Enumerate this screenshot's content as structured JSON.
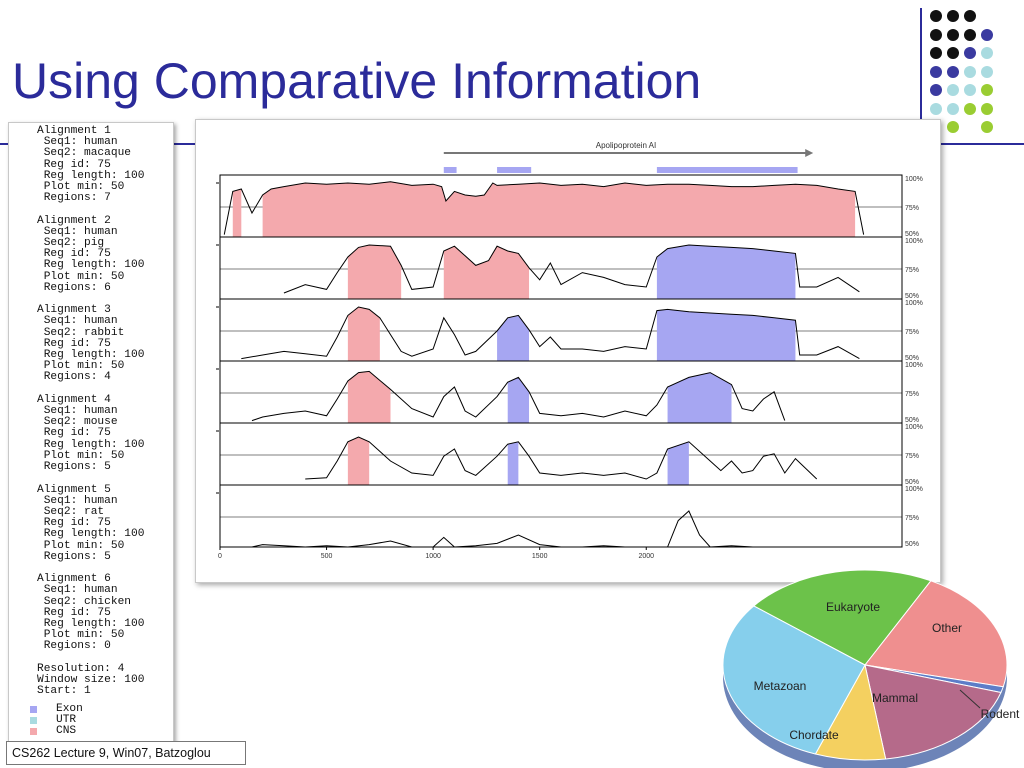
{
  "slide": {
    "title": "Using Comparative Information",
    "footer": "CS262 Lecture 9, Win07, Batzoglou"
  },
  "alignment_text": "Alignment 1\n Seq1: human\n Seq2: macaque\n Reg id: 75\n Reg length: 100\n Plot min: 50\n Regions: 7\n\nAlignment 2\n Seq1: human\n Seq2: pig\n Reg id: 75\n Reg length: 100\n Plot min: 50\n Regions: 6\n\nAlignment 3\n Seq1: human\n Seq2: rabbit\n Reg id: 75\n Reg length: 100\n Plot min: 50\n Regions: 4\n\nAlignment 4\n Seq1: human\n Seq2: mouse\n Reg id: 75\n Reg length: 100\n Plot min: 50\n Regions: 5\n\nAlignment 5\n Seq1: human\n Seq2: rat\n Reg id: 75\n Reg length: 100\n Plot min: 50\n Regions: 5\n\nAlignment 6\n Seq1: human\n Seq2: chicken\n Reg id: 75\n Reg length: 100\n Plot min: 50\n Regions: 0\n\nResolution: 4\nWindow size: 100\nStart: 1",
  "legend": [
    {
      "label": "Exon",
      "color": "#a6a6f2"
    },
    {
      "label": "UTR",
      "color": "#a9dbe0"
    },
    {
      "label": "CNS",
      "color": "#f4a9ad"
    }
  ],
  "gene_label": "Apolipoprotein AI",
  "pct_labels": [
    "100%",
    "75%",
    "50%"
  ],
  "chart_data": [
    {
      "type": "area",
      "title": "Apolipoprotein AI",
      "x_ticks": [
        0,
        500,
        1000,
        1500,
        2000
      ],
      "x_range": [
        0,
        3200
      ],
      "y_range": [
        50,
        100
      ],
      "y_ticks": [
        "100%",
        "75%",
        "50%"
      ],
      "grid": true,
      "exons": [
        [
          1050,
          1110
        ],
        [
          1300,
          1460
        ],
        [
          2050,
          2710
        ]
      ],
      "series": [
        {
          "name": "macaque",
          "x": [
            20,
            60,
            100,
            150,
            200,
            240,
            300,
            400,
            500,
            600,
            700,
            800,
            900,
            1000,
            1040,
            1060,
            1100,
            1150,
            1200,
            1240,
            1280,
            1300,
            1400,
            1500,
            1600,
            1700,
            1800,
            1900,
            2000,
            2100,
            2200,
            2300,
            2400,
            2500,
            2600,
            2700,
            2800,
            2900,
            2980,
            3000,
            3020
          ],
          "y": [
            52,
            88,
            90,
            70,
            85,
            90,
            92,
            95,
            94,
            95,
            94,
            96,
            93,
            94,
            92,
            80,
            88,
            85,
            84,
            85,
            95,
            93,
            94,
            95,
            93,
            94,
            92,
            95,
            93,
            94,
            94,
            93,
            92,
            92,
            93,
            94,
            93,
            90,
            88,
            70,
            52
          ]
        },
        {
          "name": "pig",
          "x": [
            300,
            400,
            500,
            550,
            600,
            650,
            700,
            800,
            850,
            900,
            1000,
            1050,
            1100,
            1150,
            1200,
            1260,
            1300,
            1350,
            1400,
            1450,
            1500,
            1550,
            1600,
            1700,
            1800,
            1900,
            2000,
            2050,
            2100,
            2200,
            2300,
            2400,
            2500,
            2600,
            2700,
            2720,
            2800,
            2900,
            3000
          ],
          "y": [
            55,
            62,
            58,
            72,
            85,
            93,
            95,
            94,
            78,
            58,
            60,
            90,
            94,
            86,
            78,
            82,
            94,
            90,
            88,
            76,
            66,
            80,
            62,
            72,
            68,
            62,
            60,
            85,
            92,
            95,
            94,
            93,
            92,
            90,
            88,
            60,
            60,
            68,
            56
          ]
        },
        {
          "name": "rabbit",
          "x": [
            100,
            200,
            300,
            400,
            500,
            550,
            600,
            650,
            700,
            750,
            800,
            850,
            900,
            1000,
            1050,
            1100,
            1150,
            1200,
            1300,
            1350,
            1400,
            1450,
            1500,
            1550,
            1600,
            1700,
            1800,
            1900,
            2000,
            2050,
            2100,
            2200,
            2300,
            2400,
            2500,
            2600,
            2700,
            2720,
            2800,
            2900,
            3000
          ],
          "y": [
            52,
            55,
            58,
            56,
            54,
            70,
            88,
            95,
            93,
            86,
            72,
            58,
            54,
            60,
            86,
            72,
            55,
            58,
            75,
            86,
            88,
            76,
            62,
            70,
            60,
            60,
            58,
            62,
            60,
            92,
            93,
            91,
            90,
            89,
            88,
            86,
            84,
            55,
            55,
            62,
            52
          ]
        },
        {
          "name": "mouse",
          "x": [
            150,
            200,
            300,
            400,
            500,
            550,
            600,
            650,
            700,
            800,
            900,
            1000,
            1050,
            1100,
            1150,
            1200,
            1300,
            1350,
            1400,
            1450,
            1500,
            1600,
            1700,
            1800,
            1900,
            2000,
            2050,
            2100,
            2200,
            2300,
            2400,
            2450,
            2500,
            2550,
            2600,
            2650
          ],
          "y": [
            52,
            55,
            58,
            60,
            56,
            70,
            85,
            92,
            93,
            78,
            62,
            55,
            72,
            80,
            60,
            55,
            72,
            84,
            88,
            76,
            58,
            56,
            58,
            55,
            60,
            56,
            65,
            80,
            88,
            92,
            82,
            62,
            60,
            70,
            76,
            52
          ]
        },
        {
          "name": "rat",
          "x": [
            400,
            500,
            550,
            600,
            650,
            700,
            800,
            900,
            1000,
            1050,
            1100,
            1150,
            1200,
            1300,
            1350,
            1400,
            1450,
            1500,
            1600,
            1700,
            1800,
            1900,
            2000,
            2050,
            2100,
            2200,
            2300,
            2350,
            2400,
            2450,
            2500,
            2550,
            2600,
            2650,
            2700,
            2800
          ],
          "y": [
            55,
            56,
            70,
            86,
            90,
            86,
            70,
            60,
            58,
            74,
            80,
            62,
            58,
            74,
            84,
            86,
            74,
            60,
            58,
            60,
            58,
            60,
            55,
            60,
            80,
            86,
            70,
            62,
            70,
            60,
            62,
            74,
            76,
            60,
            72,
            55
          ]
        },
        {
          "name": "chicken",
          "x": [
            150,
            200,
            300,
            400,
            500,
            600,
            700,
            800,
            900,
            1000,
            1050,
            1100,
            1200,
            1300,
            1400,
            1500,
            1600,
            1700,
            1800,
            1900,
            2000,
            2100,
            2150,
            2200,
            2250,
            2300,
            2400,
            2500,
            2600
          ],
          "y": [
            50,
            52,
            51,
            50,
            51,
            50,
            52,
            55,
            50,
            50,
            58,
            50,
            51,
            53,
            60,
            52,
            50,
            50,
            51,
            50,
            50,
            50,
            72,
            80,
            60,
            50,
            51,
            50,
            50
          ]
        }
      ]
    },
    {
      "type": "pie",
      "categories": [
        "Eukaryote",
        "Other",
        "Rodent",
        "Mammal",
        "Chordate",
        "Metazoan"
      ],
      "values": [
        22,
        21,
        1,
        18,
        8,
        30
      ],
      "colors": [
        "#6cc24a",
        "#ef8f8f",
        "#5d7dc8",
        "#b56a8a",
        "#f4d060",
        "#86cfec"
      ]
    }
  ]
}
